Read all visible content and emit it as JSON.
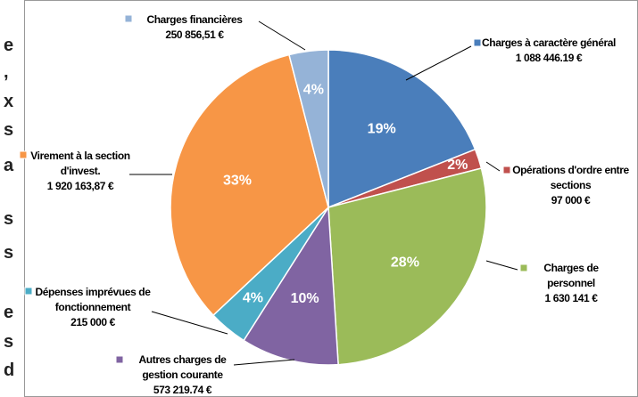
{
  "chart_data": {
    "type": "pie",
    "categories": [
      "Charges à caractère général",
      "Opérations d'ordre entre sections",
      "Charges de personnel",
      "Autres charges de gestion courante",
      "Dépenses imprévues de fonctionnement",
      "Virement à la section d'invest.",
      "Charges financières"
    ],
    "values": [
      19,
      2,
      28,
      10,
      4,
      33,
      4
    ],
    "value_labels": [
      "19%",
      "2%",
      "28%",
      "10%",
      "4%",
      "33%",
      "4%"
    ],
    "amount_labels": [
      "1 088 446.19 €",
      "97 000 €",
      "1 630 141 €",
      "573 219.74 €",
      "215 000 €",
      "1 920 163,87 €",
      "250 856,51 €"
    ],
    "colors": [
      "#4a7ebb",
      "#c0504d",
      "#9bbb59",
      "#8064a2",
      "#4bacc6",
      "#f79646",
      "#95b3d7"
    ],
    "side_text": [
      "e",
      ",",
      "x",
      "s",
      "a",
      "s",
      "s",
      "e",
      "s",
      "d"
    ]
  }
}
